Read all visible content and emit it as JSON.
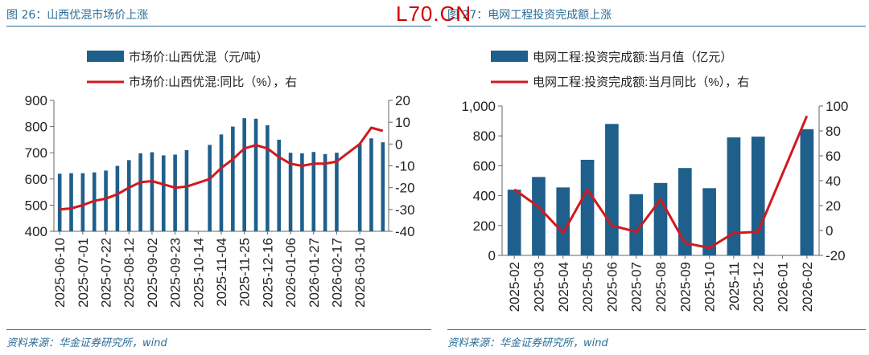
{
  "watermark": "L70.CN",
  "left": {
    "title": "图 26：山西优混市场价上涨",
    "source": "资料来源：华金证券研究所，wind",
    "chart_data": {
      "type": "bar",
      "legend": [
        "市场价:山西优混（元/吨）",
        "市场价:山西优混:同比（%），右"
      ],
      "ylim": [
        400,
        900
      ],
      "yticks": [
        "900",
        "800",
        "700",
        "600",
        "500",
        "400"
      ],
      "y2lim": [
        -40,
        20
      ],
      "y2ticks": [
        "20",
        "10",
        "0",
        "-10",
        "-20",
        "-30",
        "-40"
      ],
      "tick_labels": [
        "2025-06-10",
        "2025-07-01",
        "2025-07-22",
        "2025-08-12",
        "2025-09-02",
        "2025-09-23",
        "2025-10-14",
        "2025-11-04",
        "2025-11-25",
        "2025-12-16",
        "2026-01-06",
        "2026-01-27",
        "2026-02-17",
        "2026-03-10"
      ],
      "bars": [
        620,
        622,
        622,
        625,
        632,
        650,
        672,
        698,
        702,
        690,
        693,
        710,
        null,
        730,
        770,
        800,
        832,
        830,
        805,
        750,
        700,
        698,
        703,
        695,
        700,
        null,
        735,
        755,
        740
      ],
      "line": [
        -30,
        -29.5,
        -28,
        -26,
        -25,
        -23,
        -20,
        -17.5,
        -17,
        -18.5,
        -20,
        -19.5,
        null,
        -16,
        -11,
        -7,
        -2,
        -0.5,
        -2,
        -6,
        -9,
        -10,
        -9,
        -9,
        -8,
        null,
        0,
        7.5,
        6
      ]
    }
  },
  "right": {
    "title": "图 27：电网工程投资完成额上涨",
    "source": "资料来源：华金证券研究所，wind",
    "chart_data": {
      "type": "bar",
      "legend": [
        "电网工程:投资完成额:当月值（亿元）",
        "电网工程:投资完成额:当月同比（%），右"
      ],
      "ylim": [
        0,
        1000
      ],
      "yticks": [
        "1,000",
        "800",
        "600",
        "400",
        "200",
        "0"
      ],
      "y2lim": [
        -20,
        100
      ],
      "y2ticks": [
        "100",
        "80",
        "60",
        "40",
        "20",
        "0",
        "-20"
      ],
      "categories": [
        "2025-02",
        "2025-03",
        "2025-04",
        "2025-05",
        "2025-06",
        "2025-07",
        "2025-08",
        "2025-09",
        "2025-10",
        "2025-11",
        "2025-12",
        "2026-01",
        "2026-02"
      ],
      "bars": [
        440,
        525,
        455,
        640,
        880,
        410,
        485,
        585,
        450,
        790,
        795,
        null,
        845
      ],
      "line": [
        33,
        19,
        -2,
        33,
        4,
        -1,
        25,
        -10,
        -14,
        -2,
        -1,
        null,
        92
      ]
    }
  }
}
